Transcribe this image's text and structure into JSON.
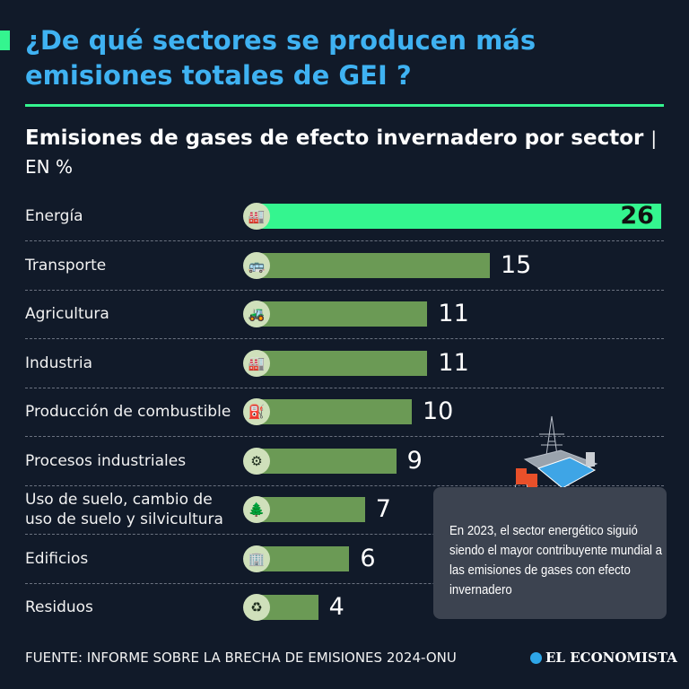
{
  "header": {
    "title": "¿De qué sectores se producen más emisiones totales de GEI ?",
    "subtitle": "Emisiones de gases de efecto invernadero por sector",
    "unit": "EN %"
  },
  "colors": {
    "background": "#111a29",
    "title": "#3fb2f2",
    "highlight_bar": "#34f58f",
    "bar": "#6b9a55",
    "icon_circle": "#cfe0bb"
  },
  "chart_data": {
    "type": "bar",
    "orientation": "horizontal",
    "title": "Emisiones de gases de efecto invernadero por sector",
    "unit": "EN %",
    "categories": [
      "Energía",
      "Transporte",
      "Agricultura",
      "Industria",
      "Producción de combustible",
      "Procesos industriales",
      "Uso de suelo, cambio de uso de suelo y silvicultura",
      "Edificios",
      "Residuos"
    ],
    "values": [
      26,
      15,
      11,
      11,
      10,
      9,
      7,
      6,
      4
    ],
    "icons": [
      "power-plant-icon",
      "bus-icon",
      "farm-icon",
      "factory-icon",
      "oil-pump-icon",
      "gear-icon",
      "trees-icon",
      "building-icon",
      "recycling-truck-icon"
    ],
    "highlight": "Energía"
  },
  "note": {
    "text": "En 2023, el sector energético siguió siendo el mayor contribuyente mundial a las emisiones de gases con efecto invernadero"
  },
  "footer": {
    "source": "FUENTE: INFORME SOBRE LA BRECHA DE EMISIONES 2024-ONU",
    "brand": "EL ECONOMISTA"
  }
}
